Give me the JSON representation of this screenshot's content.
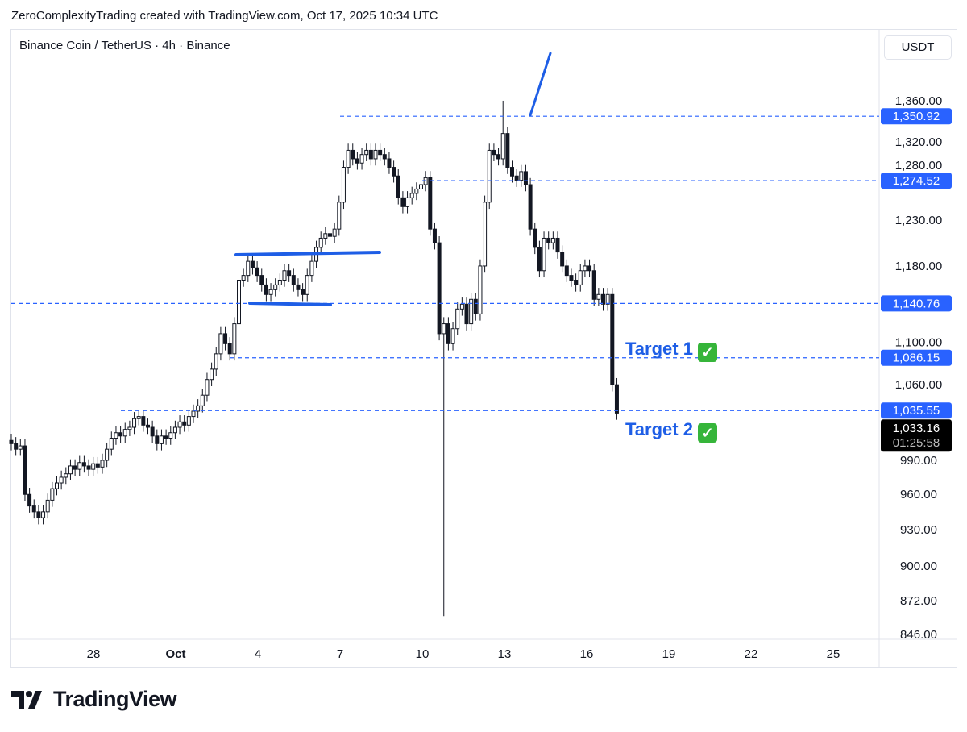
{
  "credit": "ZeroComplexityTrading created with TradingView.com, Oct 17, 2025 10:34 UTC",
  "title": "Binance Coin / TetherUS · 4h · Binance",
  "unit": "USDT",
  "logo_text": "TradingView",
  "colors": {
    "candle": "#131722",
    "level": "#2962ff",
    "drawing": "#1e5ee6",
    "last_price_bg": "#000000"
  },
  "targets": [
    {
      "label": "Target 1",
      "icon": "check-mark-icon",
      "price": 1086.15
    },
    {
      "label": "Target 2",
      "icon": "check-mark-icon",
      "price": 1035.55
    }
  ],
  "chart_data": {
    "type": "candlestick",
    "title": "Binance Coin / TetherUS · 4h · Binance",
    "y_scale": "log",
    "ylim": [
      846,
      1380
    ],
    "y_ticks": [
      "1,360.00",
      "1,320.00",
      "1,280.00",
      "1,230.00",
      "1,180.00",
      "1,100.00",
      "1,060.00",
      "990.00",
      "960.00",
      "930.00",
      "900.00",
      "872.00",
      "846.00"
    ],
    "x_ticks": [
      "28",
      "Oct",
      "4",
      "7",
      "10",
      "13",
      "16",
      "19",
      "22",
      "25"
    ],
    "x_range": [
      "2025-09-25",
      "2025-10-28"
    ],
    "interval": "4h",
    "first_candle": "2025-09-25",
    "closes": [
      1005,
      1000,
      1003,
      960,
      950,
      945,
      940,
      945,
      955,
      965,
      970,
      975,
      978,
      985,
      982,
      988,
      985,
      982,
      987,
      984,
      990,
      1000,
      1010,
      1015,
      1012,
      1018,
      1020,
      1028,
      1030,
      1022,
      1020,
      1012,
      1005,
      1012,
      1010,
      1015,
      1020,
      1025,
      1022,
      1030,
      1035,
      1040,
      1050,
      1065,
      1075,
      1090,
      1110,
      1100,
      1090,
      1120,
      1165,
      1170,
      1185,
      1178,
      1170,
      1160,
      1150,
      1155,
      1160,
      1165,
      1175,
      1170,
      1160,
      1155,
      1150,
      1170,
      1185,
      1200,
      1210,
      1215,
      1212,
      1220,
      1250,
      1290,
      1310,
      1300,
      1295,
      1305,
      1310,
      1300,
      1310,
      1305,
      1300,
      1290,
      1280,
      1255,
      1245,
      1255,
      1260,
      1265,
      1270,
      1278,
      1220,
      1205,
      1110,
      1120,
      1100,
      1115,
      1135,
      1140,
      1120,
      1145,
      1130,
      1180,
      1250,
      1310,
      1305,
      1300,
      1330,
      1290,
      1280,
      1275,
      1285,
      1270,
      1220,
      1200,
      1175,
      1210,
      1205,
      1210,
      1195,
      1180,
      1170,
      1165,
      1160,
      1175,
      1180,
      1175,
      1145,
      1150,
      1140,
      1150,
      1060,
      1033.16
    ],
    "notable_wicks": [
      {
        "date": "2025-10-10",
        "low": 860
      },
      {
        "date": "2025-10-13",
        "high": 1370
      }
    ],
    "levels": [
      {
        "price": 1350.92,
        "label": "1,350.92",
        "from": "2025-10-07"
      },
      {
        "price": 1274.52,
        "label": "1,274.52",
        "from": "2025-10-10"
      },
      {
        "price": 1140.76,
        "label": "1,140.76",
        "from": "2025-09-25"
      },
      {
        "price": 1086.15,
        "label": "1,086.15",
        "from": "2025-10-03"
      },
      {
        "price": 1035.55,
        "label": "1,035.55",
        "from": "2025-09-29"
      }
    ],
    "last_price": {
      "label": "1,033.16",
      "countdown": "01:25:58"
    }
  }
}
